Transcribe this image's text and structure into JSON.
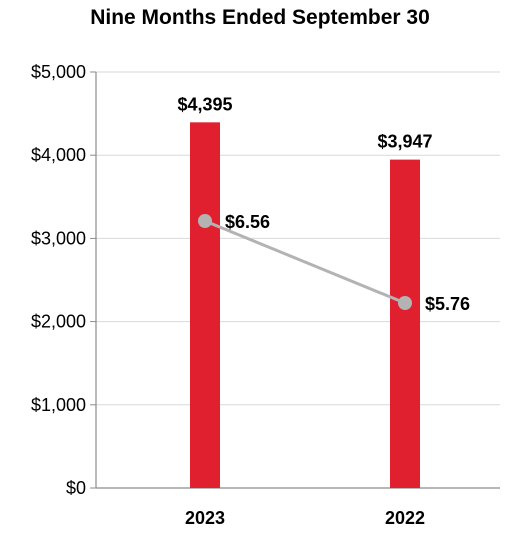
{
  "chart_data": {
    "type": "bar",
    "title": "Nine Months Ended September 30",
    "categories": [
      "2023",
      "2022"
    ],
    "ylim": [
      0,
      5000
    ],
    "yticks": [
      "$0",
      "$1,000",
      "$2,000",
      "$3,000",
      "$4,000",
      "$5,000"
    ],
    "yticks_values": [
      0,
      1000,
      2000,
      3000,
      4000,
      5000
    ],
    "grid": true,
    "series": [
      {
        "type": "bar",
        "values": [
          4395,
          3947
        ],
        "labels": [
          "$4,395",
          "$3,947"
        ],
        "color": "#e0202e"
      },
      {
        "type": "line",
        "values": [
          6.56,
          5.76
        ],
        "labels": [
          "$6.56",
          "$5.76"
        ],
        "color": "#b3b3b3"
      }
    ]
  }
}
